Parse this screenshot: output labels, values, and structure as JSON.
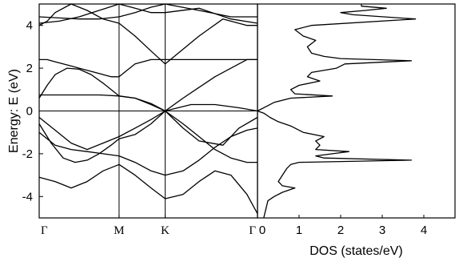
{
  "chart_data": [
    {
      "type": "line",
      "panel": "band-structure",
      "ylabel": "Energy: E (eV)",
      "ylim": [
        -5,
        5
      ],
      "yticks": [
        -4,
        -2,
        0,
        2,
        4
      ],
      "ytick_labels": [
        "-4",
        "-2",
        "0",
        "2",
        "4"
      ],
      "kpath_x": [
        0,
        1,
        1.577,
        2.732
      ],
      "kpath_labels": [
        "Γ",
        "M",
        "K",
        "Γ"
      ],
      "xlim": [
        0,
        2.732
      ],
      "series": [
        {
          "x": [
            0,
            0.25,
            0.5,
            0.75,
            1.0,
            1.2,
            1.4,
            1.577,
            2.0,
            2.4,
            2.732
          ],
          "y": [
            4.4,
            4.35,
            4.3,
            4.3,
            4.4,
            4.6,
            4.85,
            5.0,
            4.7,
            4.4,
            4.4
          ]
        },
        {
          "x": [
            0,
            0.25,
            0.5,
            0.75,
            1.0,
            1.2,
            1.4,
            1.577,
            2.0,
            2.4,
            2.732
          ],
          "y": [
            4.1,
            4.2,
            4.4,
            4.7,
            5.0,
            4.8,
            4.6,
            4.6,
            4.8,
            4.3,
            4.1
          ]
        },
        {
          "x": [
            0,
            0.1,
            0.2,
            0.4,
            0.6,
            0.8,
            1.0,
            1.2,
            1.4,
            1.577,
            2.0,
            2.3,
            2.6,
            2.732
          ],
          "y": [
            4.0,
            4.2,
            4.6,
            5.0,
            4.7,
            4.3,
            4.1,
            3.5,
            2.8,
            2.2,
            3.5,
            4.3,
            4.0,
            4.0
          ]
        },
        {
          "x": [
            0,
            0.1,
            0.2,
            0.3,
            0.4,
            0.5,
            0.6,
            0.7,
            0.8,
            0.9,
            1.0
          ],
          "y": [
            2.4,
            2.4,
            2.3,
            2.2,
            2.1,
            2.0,
            1.9,
            1.8,
            1.7,
            1.6,
            1.6
          ]
        },
        {
          "x": [
            1.0,
            1.2,
            1.4,
            1.577,
            1.8,
            2.0,
            2.2,
            2.4,
            2.6,
            2.732
          ],
          "y": [
            1.6,
            2.2,
            2.4,
            2.4,
            2.4,
            2.4,
            2.4,
            2.4,
            2.4,
            2.4
          ]
        },
        {
          "x": [
            0,
            0.1,
            0.2,
            0.35,
            0.5,
            0.65,
            0.8,
            1.0,
            1.2,
            1.4,
            1.577
          ],
          "y": [
            0.6,
            1.2,
            1.7,
            2.0,
            1.95,
            1.7,
            1.3,
            0.7,
            0.6,
            0.35,
            0.0
          ]
        },
        {
          "x": [
            0,
            0.25,
            0.5,
            0.75,
            1.0,
            1.2,
            1.4,
            1.577
          ],
          "y": [
            0.75,
            0.75,
            0.75,
            0.75,
            0.7,
            0.6,
            0.3,
            0.0
          ]
        },
        {
          "x": [
            1.577,
            1.8,
            2.0,
            2.2,
            2.4,
            2.6,
            2.732
          ],
          "y": [
            0.0,
            0.6,
            1.1,
            1.6,
            2.0,
            2.4,
            2.4
          ]
        },
        {
          "x": [
            1.577,
            1.9,
            2.2,
            2.5,
            2.732
          ],
          "y": [
            0.0,
            0.3,
            0.3,
            0.15,
            0.0
          ]
        },
        {
          "x": [
            0,
            0.2,
            0.4,
            0.6,
            0.8,
            1.0,
            1.2,
            1.4,
            1.577
          ],
          "y": [
            -0.3,
            -0.9,
            -1.5,
            -1.8,
            -1.5,
            -1.2,
            -0.8,
            -0.4,
            0.0
          ]
        },
        {
          "x": [
            1.577,
            1.8,
            2.0,
            2.3,
            2.5,
            2.732
          ],
          "y": [
            0.0,
            -0.8,
            -1.4,
            -1.6,
            -0.8,
            -0.3
          ]
        },
        {
          "x": [
            0,
            0.15,
            0.3,
            0.45,
            0.6,
            0.75,
            0.9,
            1.0,
            1.2,
            1.4,
            1.577,
            1.8,
            2.0,
            2.2,
            2.4,
            2.6,
            2.732
          ],
          "y": [
            -0.6,
            -1.5,
            -2.2,
            -2.4,
            -2.3,
            -2.0,
            -1.6,
            -1.3,
            -1.1,
            -0.6,
            0.0,
            -0.6,
            -1.2,
            -1.8,
            -2.2,
            -2.4,
            -2.4
          ]
        },
        {
          "x": [
            0,
            0.2,
            0.4,
            0.6,
            0.8,
            1.0,
            1.2,
            1.4,
            1.577,
            1.8,
            2.0,
            2.2,
            2.4,
            2.6,
            2.732
          ],
          "y": [
            -1.0,
            -1.6,
            -1.8,
            -1.9,
            -2.0,
            -2.1,
            -2.4,
            -2.8,
            -3.0,
            -2.8,
            -2.3,
            -1.7,
            -1.2,
            -0.9,
            -0.8
          ]
        },
        {
          "x": [
            0,
            0.2,
            0.4,
            0.6,
            0.8,
            1.0,
            1.2,
            1.4,
            1.577,
            1.8,
            2.0,
            2.2,
            2.4,
            2.6,
            2.732
          ],
          "y": [
            -3.1,
            -3.3,
            -3.6,
            -3.3,
            -2.8,
            -2.5,
            -3.0,
            -3.6,
            -4.1,
            -3.9,
            -3.3,
            -2.8,
            -3.0,
            -3.9,
            -4.8
          ]
        }
      ]
    },
    {
      "type": "line",
      "panel": "density-of-states",
      "xlabel": "DOS (states/eV)",
      "xlim": [
        0,
        4.5
      ],
      "xticks": [
        0,
        1,
        2,
        3,
        4
      ],
      "xtick_labels": [
        "0",
        "1",
        "2",
        "3",
        "4"
      ],
      "ylim": [
        -5,
        5
      ],
      "series": [
        {
          "energy": [
            -5.0,
            -4.6,
            -4.2,
            -4.0,
            -3.8,
            -3.6,
            -3.5,
            -3.3,
            -3.0,
            -2.7,
            -2.5,
            -2.4,
            -2.3,
            -2.2,
            -2.1,
            -2.0,
            -1.9,
            -1.8,
            -1.6,
            -1.4,
            -1.2,
            -1.0,
            -0.7,
            -0.5,
            -0.3,
            -0.1,
            0.0,
            0.2,
            0.4,
            0.6,
            0.7,
            0.8,
            1.0,
            1.2,
            1.4,
            1.6,
            1.8,
            2.0,
            2.2,
            2.35,
            2.45,
            2.55,
            2.7,
            3.0,
            3.3,
            3.5,
            3.8,
            4.0,
            4.3,
            4.5,
            4.6,
            4.7,
            4.8,
            4.9,
            5.0
          ],
          "dos": [
            0.15,
            0.2,
            0.25,
            0.4,
            0.6,
            0.9,
            0.6,
            0.5,
            0.6,
            0.7,
            0.8,
            1.0,
            3.7,
            1.6,
            1.4,
            1.8,
            2.2,
            1.4,
            1.5,
            1.4,
            1.6,
            1.1,
            0.8,
            0.5,
            0.3,
            0.15,
            0.0,
            0.2,
            0.4,
            0.8,
            1.8,
            0.9,
            0.8,
            1.0,
            1.5,
            1.2,
            1.3,
            1.9,
            2.1,
            3.7,
            2.0,
            1.6,
            1.3,
            1.2,
            1.4,
            1.1,
            0.9,
            1.3,
            3.8,
            2.3,
            2.0,
            2.6,
            3.1,
            2.5,
            2.5
          ]
        }
      ]
    }
  ]
}
